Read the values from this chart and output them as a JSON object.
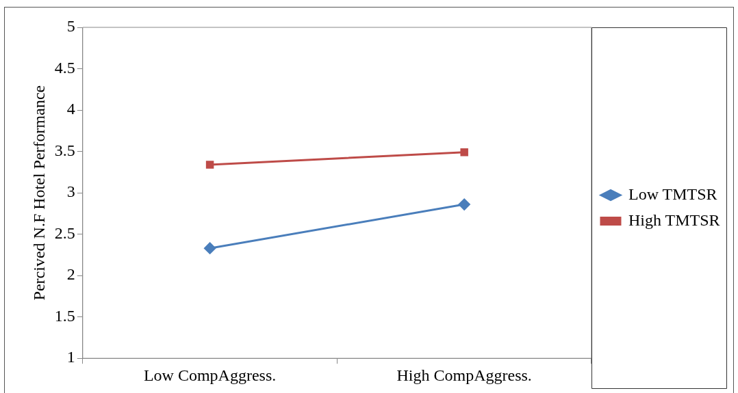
{
  "chart_data": {
    "type": "line",
    "ylabel": "Percived N.F Hotel Performance",
    "categories": [
      "Low CompAggress.",
      "High CompAggress."
    ],
    "series": [
      {
        "name": "Low TMTSR",
        "color": "#4a7ebb",
        "values": [
          2.33,
          2.86
        ],
        "marker": "diamond"
      },
      {
        "name": "High TMTSR",
        "color": "#be4b48",
        "values": [
          3.34,
          3.49
        ],
        "marker": "square"
      }
    ],
    "ylim": [
      1,
      5
    ],
    "yticks": [
      1,
      1.5,
      2,
      2.5,
      3,
      3.5,
      4,
      4.5,
      5
    ],
    "grid": false,
    "legend": "right",
    "line_style": "solid"
  }
}
